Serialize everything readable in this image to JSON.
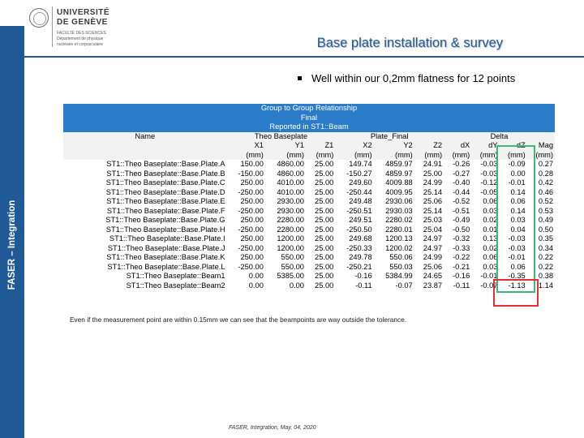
{
  "logo": {
    "name_line1": "UNIVERSITÉ",
    "name_line2": "DE GENÈVE",
    "sub1": "FACULTÉ DES SCIENCES",
    "sub2": "Département de physique",
    "sub3": "nucléaire et corpusculaire"
  },
  "sidebar": {
    "label": "FASER – Integration"
  },
  "slide": {
    "title": "Base plate installation & survey",
    "bullet": "Well within our 0,2mm flatness for 12 points"
  },
  "table": {
    "header_rows": [
      "Group to Group Relationship",
      "Final",
      "Reported in ST1::Beam"
    ],
    "group_headers": {
      "name": "Name",
      "theo": "Theo Baseplate",
      "plate": "Plate_Final",
      "delta": "Delta"
    },
    "columns": [
      "X1",
      "Y1",
      "Z1",
      "X2",
      "Y2",
      "Z2",
      "dX",
      "dY",
      "dZ",
      "Mag"
    ],
    "units": [
      "(mm)",
      "(mm)",
      "(mm)",
      "(mm)",
      "(mm)",
      "(mm)",
      "(mm)",
      "(mm)",
      "(mm)",
      "(mm)"
    ],
    "rows": [
      [
        "ST1::Theo Baseplate::Base.Plate.A",
        "150.00",
        "4860.00",
        "25.00",
        "149.74",
        "4859.97",
        "24.91",
        "-0.26",
        "-0.03",
        "-0.09",
        "0.27"
      ],
      [
        "ST1::Theo Baseplate::Base.Plate.B",
        "-150.00",
        "4860.00",
        "25.00",
        "-150.27",
        "4859.97",
        "25.00",
        "-0.27",
        "-0.03",
        "0.00",
        "0.28"
      ],
      [
        "ST1::Theo Baseplate::Base.Plate.C",
        "250.00",
        "4010.00",
        "25.00",
        "249.60",
        "4009.88",
        "24.99",
        "-0.40",
        "-0.12",
        "-0.01",
        "0.42"
      ],
      [
        "ST1::Theo Baseplate::Base.Plate.D",
        "-250.00",
        "4010.00",
        "25.00",
        "-250.44",
        "4009.95",
        "25.14",
        "-0.44",
        "-0.05",
        "0.14",
        "0.46"
      ],
      [
        "ST1::Theo Baseplate::Base.Plate.E",
        "250.00",
        "2930.00",
        "25.00",
        "249.48",
        "2930.06",
        "25.06",
        "-0.52",
        "0.06",
        "0.06",
        "0.52"
      ],
      [
        "ST1::Theo Baseplate::Base.Plate.F",
        "-250.00",
        "2930.00",
        "25.00",
        "-250.51",
        "2930.03",
        "25.14",
        "-0.51",
        "0.03",
        "0.14",
        "0.53"
      ],
      [
        "ST1::Theo Baseplate::Base.Plate.G",
        "250.00",
        "2280.00",
        "25.00",
        "249.51",
        "2280.02",
        "25.03",
        "-0.49",
        "0.02",
        "0.03",
        "0.49"
      ],
      [
        "ST1::Theo Baseplate::Base.Plate.H",
        "-250.00",
        "2280.00",
        "25.00",
        "-250.50",
        "2280.01",
        "25.04",
        "-0.50",
        "0.01",
        "0.04",
        "0.50"
      ],
      [
        "ST1::Theo Baseplate::Base.Plate.I",
        "250.00",
        "1200.00",
        "25.00",
        "249.68",
        "1200.13",
        "24.97",
        "-0.32",
        "0.13",
        "-0.03",
        "0.35"
      ],
      [
        "ST1::Theo Baseplate::Base.Plate.J",
        "-250.00",
        "1200.00",
        "25.00",
        "-250.33",
        "1200.02",
        "24.97",
        "-0.33",
        "0.02",
        "-0.03",
        "0.34"
      ],
      [
        "ST1::Theo Baseplate::Base.Plate.K",
        "250.00",
        "550.00",
        "25.00",
        "249.78",
        "550.06",
        "24.99",
        "-0.22",
        "0.06",
        "-0.01",
        "0.22"
      ],
      [
        "ST1::Theo Baseplate::Base.Plate.L",
        "-250.00",
        "550.00",
        "25.00",
        "-250.21",
        "550.03",
        "25.06",
        "-0.21",
        "0.03",
        "0.06",
        "0.22"
      ],
      [
        "ST1::Theo Baseplate::Beam1",
        "0.00",
        "5385.00",
        "25.00",
        "-0.16",
        "5384.99",
        "24.65",
        "-0.16",
        "-0.01",
        "-0.35",
        "0.38"
      ],
      [
        "ST1::Theo Baseplate::Beam2",
        "0.00",
        "0.00",
        "25.00",
        "-0.11",
        "-0.07",
        "23.87",
        "-0.11",
        "-0.07",
        "-1.13",
        "1.14"
      ]
    ]
  },
  "note": "Even if the measurement point are within 0.15mm we can see that the beampoints are way outside the tolerance.",
  "footer": "FASER, Integration, May, 04, 2020",
  "colors": {
    "brand_blue": "#1f5a96",
    "table_header": "#2b7cc8",
    "highlight_green": "#3cb87a",
    "highlight_red": "#e03030"
  }
}
